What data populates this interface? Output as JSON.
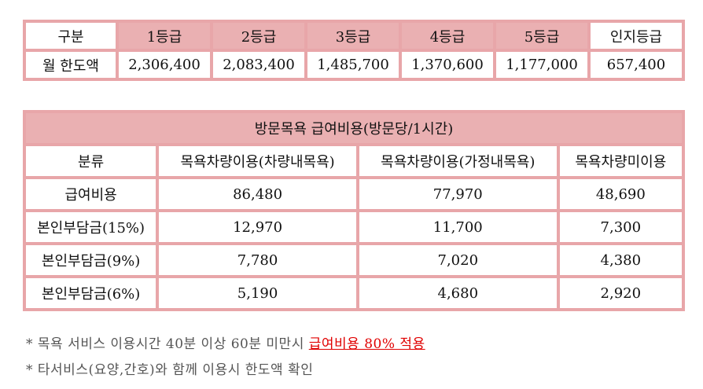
{
  "limit_table": {
    "headers": [
      "구분",
      "1등급",
      "2등급",
      "3등급",
      "4등급",
      "5등급",
      "인지등급"
    ],
    "row_label": "월 한도액",
    "values": [
      "2,306,400",
      "2,083,400",
      "1,485,700",
      "1,370,600",
      "1,177,000",
      "657,400"
    ]
  },
  "cost_table": {
    "title": "방문목욕 급여비용(방문당/1시간)",
    "headers": [
      "분류",
      "목욕차량이용(차량내목욕)",
      "목욕차량이용(가정내목욕)",
      "목욕차량미이용"
    ],
    "rows": [
      {
        "label": "급여비용",
        "values": [
          "86,480",
          "77,970",
          "48,690"
        ]
      },
      {
        "label": "본인부담금(15%)",
        "values": [
          "12,970",
          "11,700",
          "7,300"
        ]
      },
      {
        "label": "본인부담금(9%)",
        "values": [
          "7,780",
          "7,020",
          "4,380"
        ]
      },
      {
        "label": "본인부담금(6%)",
        "values": [
          "5,190",
          "4,680",
          "2,920"
        ]
      }
    ]
  },
  "notes": {
    "note1_prefix": "* 목욕 서비스 이용시간 40분 이상 60분 미만시 ",
    "note1_highlight": "급여비용 80% 적용",
    "note2": "* 타서비스(요양,간호)와 함께 이용시 한도액 확인"
  },
  "colors": {
    "border": "#e8a6a9",
    "header_fill": "#eab0b2",
    "highlight": "#e00000"
  }
}
